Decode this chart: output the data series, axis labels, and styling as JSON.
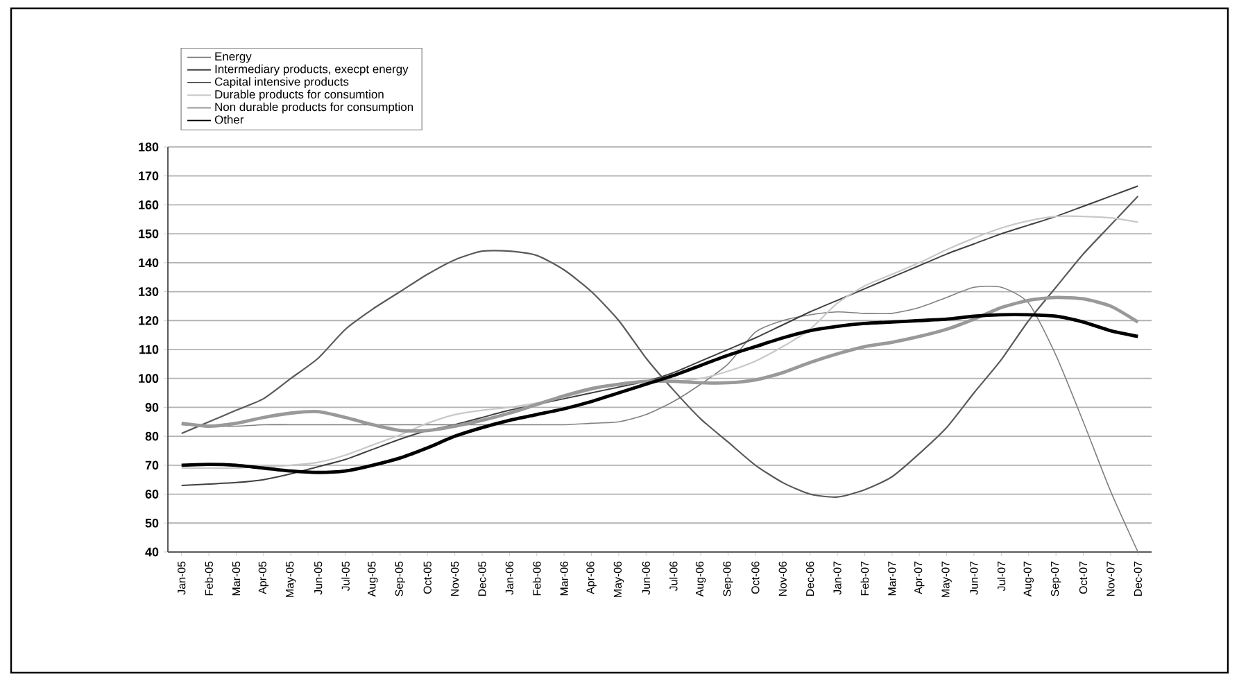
{
  "chart_data": {
    "type": "line",
    "categories": [
      "Jan-05",
      "Feb-05",
      "Mar-05",
      "Apr-05",
      "May-05",
      "Jun-05",
      "Jul-05",
      "Aug-05",
      "Sep-05",
      "Oct-05",
      "Nov-05",
      "Dec-05",
      "Jan-06",
      "Feb-06",
      "Mar-06",
      "Apr-06",
      "May-06",
      "Jun-06",
      "Jul-06",
      "Aug-06",
      "Sep-06",
      "Oct-06",
      "Nov-06",
      "Dec-06",
      "Jan-07",
      "Feb-07",
      "Mar-07",
      "Apr-07",
      "May-07",
      "Jun-07",
      "Jul-07",
      "Aug-07",
      "Sep-07",
      "Oct-07",
      "Nov-07",
      "Dec-07"
    ],
    "series": [
      {
        "name": "Energy",
        "color": "#808080",
        "values": [
          84,
          83.5,
          83.5,
          84,
          84,
          84,
          84,
          84,
          84,
          84,
          84,
          84,
          84,
          84,
          84,
          84.5,
          85,
          87.5,
          92,
          98,
          105,
          116,
          120,
          122,
          123,
          122.5,
          122.5,
          124.5,
          128,
          131.5,
          131.5,
          126,
          108,
          85,
          61,
          40
        ]
      },
      {
        "name": "Intermediary products, execpt energy",
        "color": "#404040",
        "values": [
          63,
          63.5,
          64,
          65,
          67,
          69.5,
          72,
          75.5,
          79,
          82,
          84,
          86.5,
          89,
          91,
          93,
          95,
          97,
          99,
          102,
          106,
          110,
          114,
          118.5,
          123,
          127,
          131,
          135,
          139,
          143,
          146.5,
          150,
          153,
          156,
          159.5,
          163,
          166.5
        ]
      },
      {
        "name": "Capital intensive products",
        "color": "#5a5a5a",
        "values": [
          81,
          85,
          89,
          93,
          100,
          107,
          117,
          124,
          130,
          136,
          141,
          144,
          144,
          142.5,
          137.5,
          130,
          120,
          107,
          96,
          86,
          78,
          70,
          64,
          60,
          59,
          61.5,
          66,
          74,
          83,
          95,
          106.5,
          120,
          131.5,
          143,
          153,
          163
        ]
      },
      {
        "name": "Durable products for consumtion",
        "color": "#c8c8c8",
        "values": [
          69,
          69,
          69,
          69.5,
          70,
          71,
          73.5,
          77,
          80.5,
          84.5,
          87.5,
          89,
          90,
          91.5,
          93.5,
          96,
          98,
          99,
          99,
          100,
          102.5,
          106,
          111,
          117,
          126,
          132,
          136,
          140,
          144.5,
          148.5,
          152,
          154.5,
          156,
          156,
          155.5,
          154
        ]
      },
      {
        "name": "Non durable products for consumption",
        "color": "#999999",
        "values": [
          84.5,
          83.5,
          84.5,
          86.5,
          88,
          88.5,
          86.5,
          84,
          82,
          82,
          83.5,
          85.5,
          88,
          91,
          94,
          96.5,
          98,
          99,
          99,
          98.5,
          98.5,
          99.5,
          102,
          105.5,
          108.5,
          111,
          112.5,
          114.5,
          117,
          120.5,
          124.5,
          127,
          128,
          127.5,
          125,
          119.5
        ]
      },
      {
        "name": "Other",
        "color": "#000000",
        "values": [
          70,
          70.3,
          70,
          69,
          68,
          67.5,
          68,
          70,
          72.5,
          76,
          80,
          83,
          85.5,
          87.5,
          89.5,
          92,
          95,
          98,
          101,
          104.5,
          108,
          111,
          114,
          116.5,
          118,
          119,
          119.5,
          120,
          120.5,
          121.5,
          122,
          122,
          121.5,
          119.5,
          116.5,
          114.5
        ]
      }
    ],
    "ylim": [
      40,
      180
    ],
    "yticks": [
      40,
      50,
      60,
      70,
      80,
      90,
      100,
      110,
      120,
      130,
      140,
      150,
      160,
      170,
      180
    ],
    "grid": "y",
    "legend": "top left",
    "marker": "none",
    "line_style": "solid"
  }
}
